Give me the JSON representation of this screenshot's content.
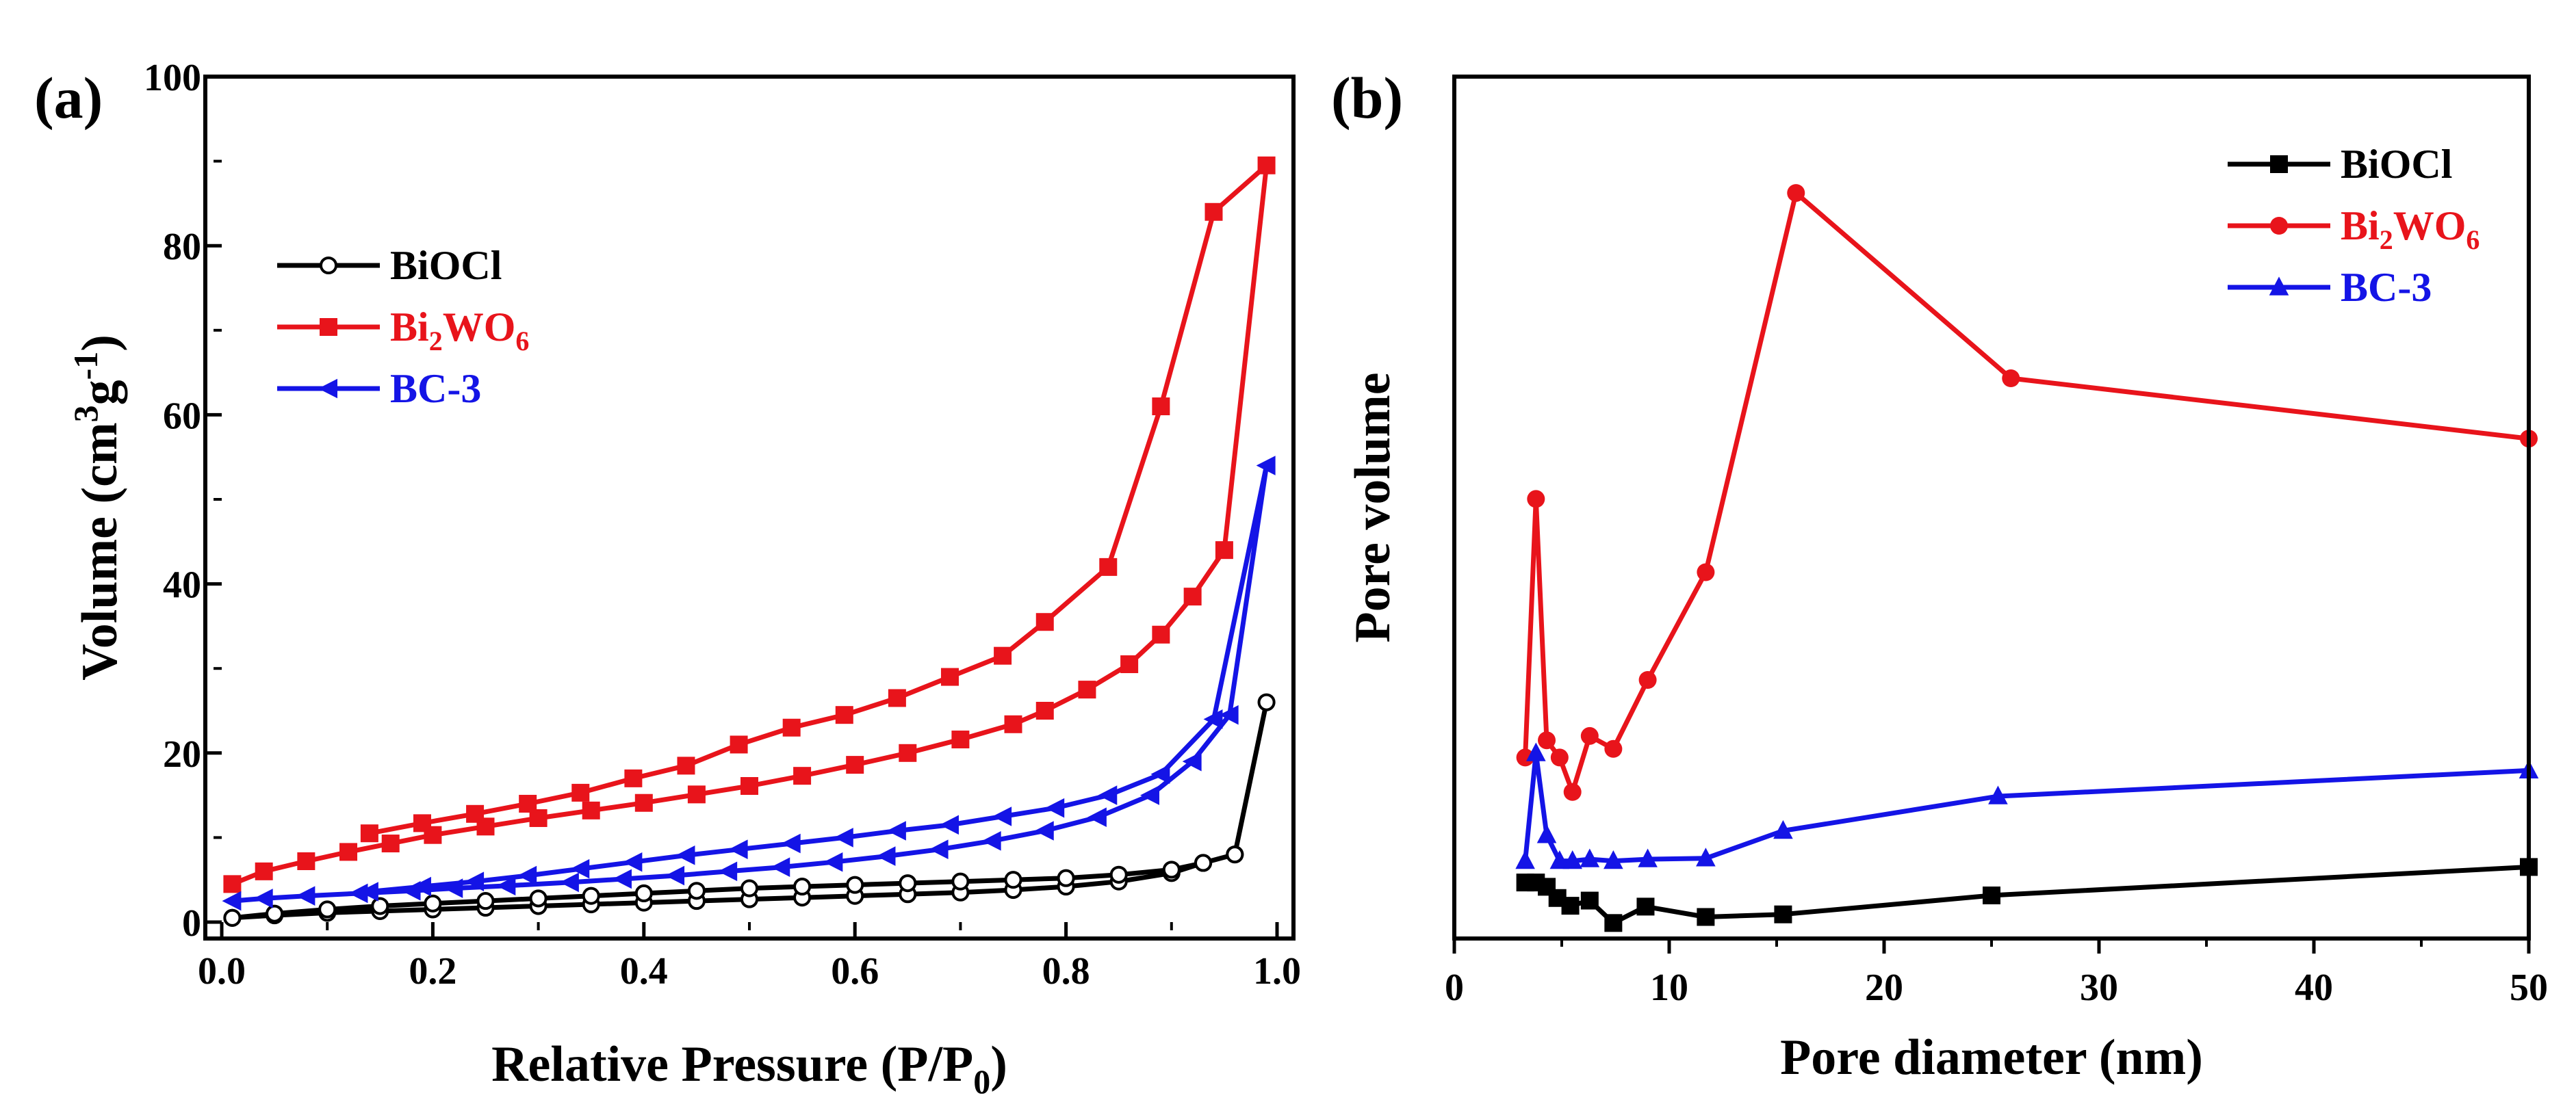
{
  "figure": {
    "colors": {
      "BiOCl": "#000000",
      "Bi2WO6": "#e8141b",
      "BC-3": "#1414e6"
    }
  },
  "chart_data": [
    {
      "panel_label": "(a)",
      "type": "line",
      "title": "",
      "xlabel": "Relative Pressure (P/P0)",
      "xlabel_parts": {
        "main": "Relative Pressure (P/P",
        "sub": "0",
        "close": ")"
      },
      "ylabel": "Volume (cm3g-1)",
      "ylabel_parts": {
        "pre": "Volume (cm",
        "sup1": "3",
        "mid": "g",
        "sup2": "-1",
        "close": ")"
      },
      "xlim": [
        0.0,
        1.0
      ],
      "ylim": [
        0,
        100
      ],
      "xticks": [
        0.0,
        0.2,
        0.4,
        0.6,
        0.8,
        1.0
      ],
      "xtick_labels": [
        "0.0",
        "0.2",
        "0.4",
        "0.6",
        "0.8",
        "1.0"
      ],
      "yticks": [
        0,
        20,
        40,
        60,
        80,
        100
      ],
      "ytick_labels": [
        "0",
        "20",
        "40",
        "60",
        "80",
        "100"
      ],
      "legend_position": "upper-left",
      "series": [
        {
          "name": "BiOCl",
          "legend": {
            "main": "BiOCl"
          },
          "color": "#000000",
          "marker": "circle-open",
          "x": [
            0.01,
            0.05,
            0.1,
            0.15,
            0.2,
            0.25,
            0.3,
            0.35,
            0.4,
            0.45,
            0.5,
            0.55,
            0.6,
            0.65,
            0.7,
            0.75,
            0.8,
            0.85,
            0.9,
            0.93,
            0.96,
            0.99,
            0.96,
            0.93,
            0.9,
            0.85,
            0.8,
            0.75,
            0.7,
            0.65,
            0.6,
            0.55,
            0.5,
            0.45,
            0.4,
            0.35,
            0.3,
            0.25,
            0.2,
            0.15,
            0.1,
            0.05,
            0.01
          ],
          "y": [
            0.5,
            0.8,
            1.1,
            1.3,
            1.5,
            1.7,
            1.9,
            2.1,
            2.3,
            2.5,
            2.7,
            2.9,
            3.1,
            3.3,
            3.5,
            3.8,
            4.2,
            4.8,
            5.8,
            7.0,
            8.0,
            26.0,
            8.0,
            7.0,
            6.2,
            5.6,
            5.2,
            5.0,
            4.8,
            4.6,
            4.4,
            4.2,
            4.0,
            3.7,
            3.4,
            3.1,
            2.8,
            2.5,
            2.2,
            1.9,
            1.5,
            1.0,
            0.5
          ]
        },
        {
          "name": "Bi2WO6",
          "legend": {
            "main": "Bi",
            "sub1": "2",
            "mid": "WO",
            "sub2": "6"
          },
          "color": "#e8141b",
          "marker": "square",
          "x": [
            0.01,
            0.04,
            0.08,
            0.12,
            0.16,
            0.2,
            0.25,
            0.3,
            0.35,
            0.4,
            0.45,
            0.5,
            0.55,
            0.6,
            0.65,
            0.7,
            0.75,
            0.78,
            0.82,
            0.86,
            0.89,
            0.92,
            0.95,
            0.99,
            0.94,
            0.89,
            0.84,
            0.78,
            0.74,
            0.69,
            0.64,
            0.59,
            0.54,
            0.49,
            0.44,
            0.39,
            0.34,
            0.29,
            0.24,
            0.19,
            0.14
          ],
          "y": [
            4.5,
            6.0,
            7.2,
            8.3,
            9.3,
            10.3,
            11.3,
            12.3,
            13.2,
            14.1,
            15.1,
            16.1,
            17.3,
            18.6,
            20.0,
            21.6,
            23.4,
            25.0,
            27.5,
            30.5,
            34.0,
            38.5,
            44.0,
            89.5,
            84.0,
            61.0,
            42.0,
            35.5,
            31.5,
            29.0,
            26.5,
            24.5,
            23.0,
            21.0,
            18.5,
            17.0,
            15.3,
            14.0,
            12.8,
            11.7,
            10.5
          ]
        },
        {
          "name": "BC-3",
          "legend": {
            "main": "BC-3"
          },
          "color": "#1414e6",
          "marker": "triangle-left",
          "x": [
            0.01,
            0.04,
            0.08,
            0.13,
            0.18,
            0.22,
            0.27,
            0.33,
            0.38,
            0.43,
            0.48,
            0.53,
            0.58,
            0.63,
            0.68,
            0.73,
            0.78,
            0.83,
            0.88,
            0.92,
            0.955,
            0.99,
            0.94,
            0.89,
            0.84,
            0.79,
            0.74,
            0.69,
            0.64,
            0.59,
            0.54,
            0.49,
            0.44,
            0.39,
            0.34,
            0.29,
            0.24,
            0.19,
            0.14
          ],
          "y": [
            2.5,
            2.8,
            3.1,
            3.4,
            3.7,
            4.0,
            4.3,
            4.7,
            5.1,
            5.5,
            6.0,
            6.5,
            7.1,
            7.8,
            8.6,
            9.6,
            10.8,
            12.4,
            15.0,
            19.0,
            24.5,
            54.0,
            24.0,
            17.5,
            15.0,
            13.5,
            12.5,
            11.5,
            10.8,
            10.0,
            9.3,
            8.6,
            7.9,
            7.1,
            6.3,
            5.5,
            4.8,
            4.2,
            3.6
          ]
        }
      ]
    },
    {
      "panel_label": "(b)",
      "type": "line",
      "title": "",
      "xlabel": "Pore diameter (nm)",
      "ylabel": "Pore volume",
      "xlim": [
        0,
        50
      ],
      "ylim": [
        0,
        100
      ],
      "xticks": [
        0,
        10,
        20,
        30,
        40,
        50
      ],
      "xtick_labels": [
        "0",
        "10",
        "20",
        "30",
        "40",
        "50"
      ],
      "yticks": [],
      "ytick_labels": [],
      "legend_position": "upper-right",
      "series": [
        {
          "name": "BiOCl",
          "legend": {
            "main": "BiOCl"
          },
          "color": "#000000",
          "marker": "square",
          "x": [
            3.3,
            3.8,
            4.3,
            4.8,
            5.4,
            6.3,
            7.4,
            8.9,
            11.7,
            15.3,
            25.0,
            50.0
          ],
          "y": [
            6.5,
            6.5,
            6.0,
            4.7,
            3.8,
            4.4,
            1.8,
            3.7,
            2.5,
            2.8,
            5.0,
            8.3
          ]
        },
        {
          "name": "Bi2WO6",
          "legend": {
            "main": "Bi",
            "sub1": "2",
            "mid": "WO",
            "sub2": "6"
          },
          "color": "#e8141b",
          "marker": "circle",
          "x": [
            3.3,
            3.8,
            4.3,
            4.9,
            5.5,
            6.3,
            7.4,
            9.0,
            11.7,
            15.9,
            25.9,
            50.0
          ],
          "y": [
            21.0,
            51.0,
            23.0,
            21.0,
            17.0,
            23.5,
            22.0,
            30.0,
            42.5,
            86.5,
            65.0,
            58.0
          ]
        },
        {
          "name": "BC-3",
          "legend": {
            "main": "BC-3"
          },
          "color": "#1414e6",
          "marker": "triangle-up",
          "x": [
            3.3,
            3.8,
            4.3,
            4.9,
            5.5,
            6.3,
            7.4,
            9.0,
            11.7,
            15.3,
            25.3,
            50.0
          ],
          "y": [
            9.0,
            21.5,
            12.0,
            9.0,
            9.0,
            9.2,
            9.0,
            9.2,
            9.3,
            12.5,
            16.5,
            19.5
          ]
        }
      ]
    }
  ]
}
